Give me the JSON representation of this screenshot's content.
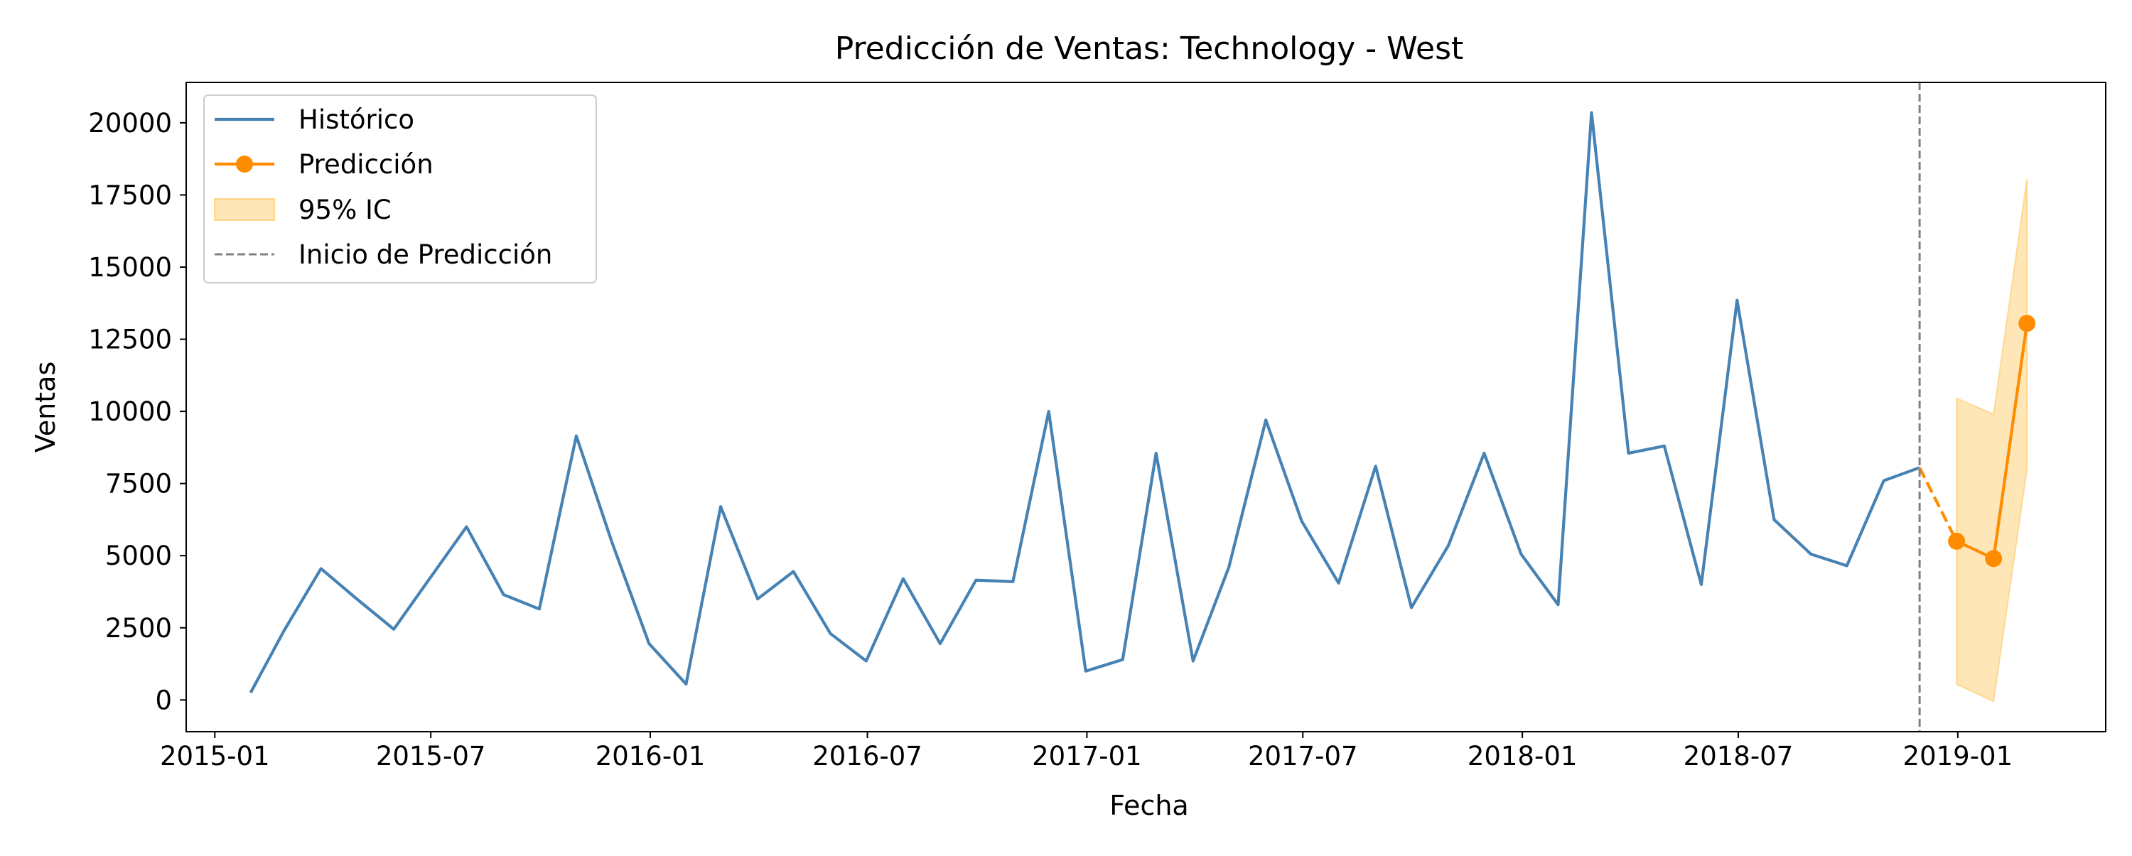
{
  "chart_data": {
    "type": "line",
    "title": "Predicción de Ventas: Technology - West",
    "xlabel": "Fecha",
    "ylabel": "Ventas",
    "x_ticks": [
      "2015-01",
      "2015-07",
      "2016-01",
      "2016-07",
      "2017-01",
      "2017-07",
      "2018-01",
      "2018-07",
      "2019-01"
    ],
    "y_ticks": [
      0,
      2500,
      5000,
      7500,
      10000,
      12500,
      15000,
      17500,
      20000
    ],
    "xlim": [
      "2014-12-08",
      "2019-05-05"
    ],
    "ylim": [
      -1100,
      21400
    ],
    "grid": false,
    "legend_position": "top-left",
    "legend": [
      {
        "label": "Histórico",
        "kind": "line",
        "color": "#4682b4"
      },
      {
        "label": "Predicción",
        "kind": "line-marker",
        "color": "#ff8c00"
      },
      {
        "label": "95% IC",
        "kind": "patch",
        "color": "#ffc04c"
      },
      {
        "label": "Inicio de Predicción",
        "kind": "dashed",
        "color": "#808080"
      }
    ],
    "series": [
      {
        "name": "Histórico",
        "color": "#4682b4",
        "x": [
          "2015-01-31",
          "2015-02-28",
          "2015-03-31",
          "2015-04-30",
          "2015-05-31",
          "2015-06-30",
          "2015-07-31",
          "2015-08-31",
          "2015-09-30",
          "2015-10-31",
          "2015-11-30",
          "2015-12-31",
          "2016-01-31",
          "2016-02-29",
          "2016-03-31",
          "2016-04-30",
          "2016-05-31",
          "2016-06-30",
          "2016-07-31",
          "2016-08-31",
          "2016-09-30",
          "2016-10-31",
          "2016-11-30",
          "2016-12-31",
          "2017-01-31",
          "2017-02-28",
          "2017-03-31",
          "2017-04-30",
          "2017-05-31",
          "2017-06-30",
          "2017-07-31",
          "2017-08-31",
          "2017-09-30",
          "2017-10-31",
          "2017-11-30",
          "2017-12-31",
          "2018-01-31",
          "2018-02-28",
          "2018-03-31",
          "2018-04-30",
          "2018-05-31",
          "2018-06-30",
          "2018-07-31",
          "2018-08-31",
          "2018-09-30",
          "2018-10-31",
          "2018-11-30"
        ],
        "values": [
          250,
          2400,
          4550,
          3500,
          2450,
          4200,
          6000,
          3650,
          3150,
          9150,
          5450,
          1950,
          550,
          6700,
          3500,
          4450,
          2300,
          1350,
          4200,
          1950,
          4150,
          4100,
          10000,
          1000,
          1400,
          8550,
          1350,
          4600,
          9700,
          6200,
          4050,
          8100,
          3200,
          5350,
          8550,
          5050,
          3300,
          20350,
          8550,
          8800,
          4000,
          13850,
          6250,
          5050,
          4650,
          7600,
          8050
        ]
      },
      {
        "name": "Predicción",
        "color": "#ff8c00",
        "x": [
          "2018-12-31",
          "2019-01-31",
          "2019-02-28"
        ],
        "values": [
          5500,
          4900,
          13050
        ],
        "ci_lower": [
          550,
          -50,
          8000
        ],
        "ci_upper": [
          10450,
          9900,
          18050
        ]
      }
    ],
    "connector": {
      "x": [
        "2018-11-30",
        "2018-12-31"
      ],
      "values": [
        8050,
        5500
      ],
      "style": "dashed",
      "color": "#ff8c00"
    },
    "vline": {
      "x": "2018-11-30",
      "color": "#808080",
      "style": "dashed"
    }
  }
}
